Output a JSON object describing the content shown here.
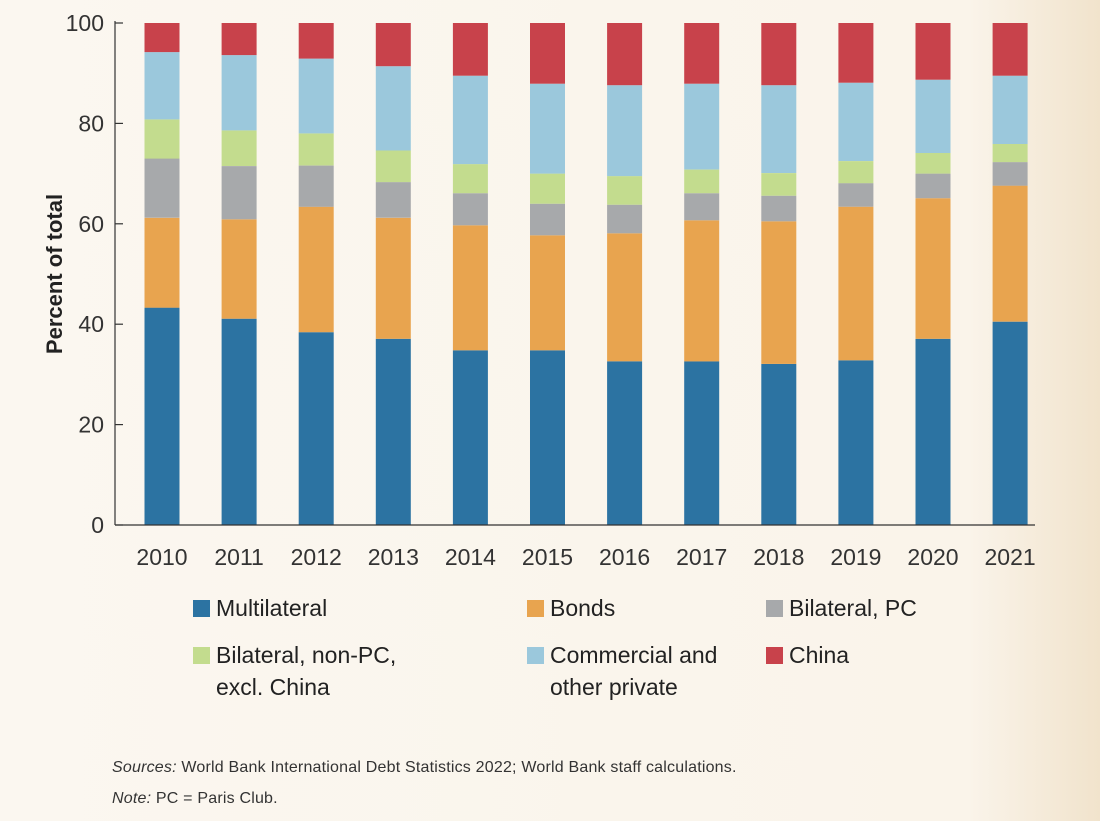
{
  "chart_data": {
    "type": "bar",
    "stacked": true,
    "categories": [
      "2010",
      "2011",
      "2012",
      "2013",
      "2014",
      "2015",
      "2016",
      "2017",
      "2018",
      "2019",
      "2020",
      "2021"
    ],
    "ylabel": "Percent of total",
    "ylim": [
      0,
      100
    ],
    "yticks": [
      0,
      20,
      40,
      60,
      80,
      100
    ],
    "series": [
      {
        "name": "Multilateral",
        "color": "#2c73a2",
        "values": [
          43.3,
          41.1,
          38.4,
          37.1,
          34.8,
          34.8,
          32.6,
          32.6,
          32.1,
          32.8,
          37.1,
          40.5
        ]
      },
      {
        "name": "Bonds",
        "color": "#e8a44f",
        "values": [
          17.9,
          19.8,
          25.0,
          24.1,
          24.9,
          22.9,
          25.5,
          28.1,
          28.4,
          30.6,
          28.0,
          27.1
        ]
      },
      {
        "name": "Bilateral, PC",
        "color": "#a7a9ab",
        "values": [
          11.8,
          10.6,
          8.2,
          7.1,
          6.4,
          6.3,
          5.7,
          5.4,
          5.1,
          4.7,
          4.9,
          4.7
        ]
      },
      {
        "name": "Bilateral, non-PC, excl. China",
        "color": "#c3dc8e",
        "values": [
          7.8,
          7.1,
          6.4,
          6.3,
          5.8,
          6.0,
          5.7,
          4.7,
          4.5,
          4.4,
          4.1,
          3.6
        ]
      },
      {
        "name": "Commercial and other private",
        "color": "#9bc8dc",
        "values": [
          13.4,
          15.0,
          14.9,
          16.8,
          17.6,
          17.9,
          18.1,
          17.1,
          17.5,
          15.6,
          14.6,
          13.6
        ]
      },
      {
        "name": "China",
        "color": "#c8424b",
        "values": [
          5.8,
          6.4,
          7.1,
          8.6,
          10.5,
          12.1,
          12.4,
          12.1,
          12.4,
          11.9,
          11.3,
          10.5
        ]
      }
    ],
    "legend": {
      "placement": "bottom",
      "rows": [
        [
          {
            "series": 0,
            "lines": [
              "Multilateral"
            ]
          },
          {
            "series": 1,
            "lines": [
              "Bonds"
            ]
          },
          {
            "series": 2,
            "lines": [
              "Bilateral, PC"
            ]
          }
        ],
        [
          {
            "series": 3,
            "lines": [
              "Bilateral, non-PC,",
              "excl. China"
            ]
          },
          {
            "series": 4,
            "lines": [
              "Commercial and",
              "other private"
            ]
          },
          {
            "series": 5,
            "lines": [
              "China"
            ]
          }
        ]
      ]
    },
    "grid": false
  },
  "footer": {
    "sources_label": "Sources:",
    "sources_text": " World Bank International Debt Statistics 2022; World Bank staff calculations.",
    "note_label": "Note:",
    "note_text": " PC = Paris Club."
  }
}
